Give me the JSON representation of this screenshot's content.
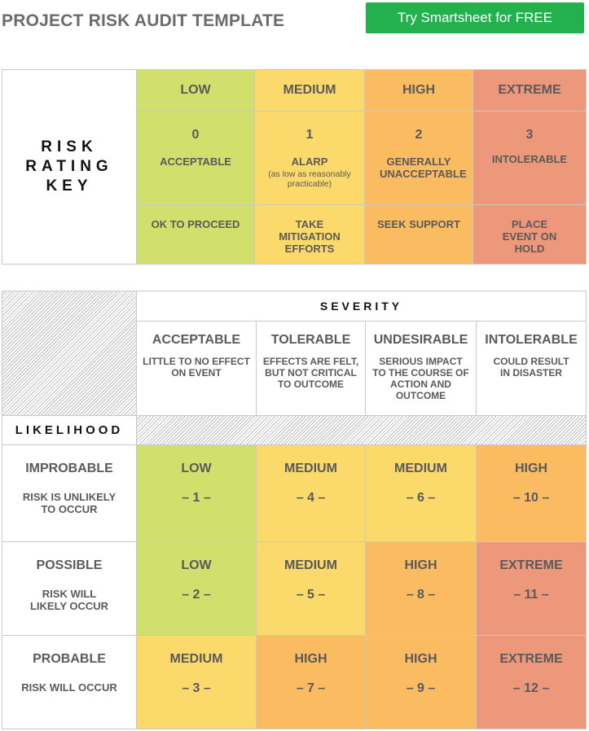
{
  "header": {
    "title": "PROJECT RISK AUDIT TEMPLATE",
    "cta_label": "Try Smartsheet for FREE"
  },
  "rating_key": {
    "label_lines": [
      "RISK",
      "RATING",
      "KEY"
    ],
    "levels": [
      {
        "name": "LOW",
        "score": "0",
        "meaning": "ACCEPTABLE",
        "meaning_sub": "",
        "action": "OK TO PROCEED",
        "color": "#d1e06d"
      },
      {
        "name": "MEDIUM",
        "score": "1",
        "meaning": "ALARP",
        "meaning_sub": "(as low as reasonably practicable)",
        "action": "TAKE MITIGATION EFFORTS",
        "color": "#fbd96a"
      },
      {
        "name": "HIGH",
        "score": "2",
        "meaning": "GENERALLY UNACCEPTABLE",
        "meaning_sub": "",
        "action": "SEEK SUPPORT",
        "color": "#fbbb61"
      },
      {
        "name": "EXTREME",
        "score": "3",
        "meaning": "INTOLERABLE",
        "meaning_sub": "",
        "action": "PLACE EVENT ON HOLD",
        "color": "#ed977b"
      }
    ]
  },
  "matrix": {
    "severity_label": "SEVERITY",
    "likelihood_label": "LIKELIHOOD",
    "severity": [
      {
        "name": "ACCEPTABLE",
        "desc": "LITTLE TO NO EFFECT ON EVENT"
      },
      {
        "name": "TOLERABLE",
        "desc": "EFFECTS ARE FELT, BUT NOT CRITICAL TO OUTCOME"
      },
      {
        "name": "UNDESIRABLE",
        "desc": "SERIOUS IMPACT TO THE COURSE OF ACTION AND OUTCOME"
      },
      {
        "name": "INTOLERABLE",
        "desc": "COULD RESULT IN DISASTER"
      }
    ],
    "rows": [
      {
        "name": "IMPROBABLE",
        "desc": "RISK IS UNLIKELY TO OCCUR",
        "cells": [
          {
            "level": "LOW",
            "num": "– 1 –",
            "color": "#d1e06d"
          },
          {
            "level": "MEDIUM",
            "num": "– 4 –",
            "color": "#fbd96a"
          },
          {
            "level": "MEDIUM",
            "num": "– 6 –",
            "color": "#fbd96a"
          },
          {
            "level": "HIGH",
            "num": "– 10 –",
            "color": "#fbbb61"
          }
        ]
      },
      {
        "name": "POSSIBLE",
        "desc": "RISK WILL LIKELY OCCUR",
        "cells": [
          {
            "level": "LOW",
            "num": "– 2 –",
            "color": "#d1e06d"
          },
          {
            "level": "MEDIUM",
            "num": "– 5 –",
            "color": "#fbd96a"
          },
          {
            "level": "HIGH",
            "num": "– 8 –",
            "color": "#fbbb61"
          },
          {
            "level": "EXTREME",
            "num": "– 11 –",
            "color": "#ed977b"
          }
        ]
      },
      {
        "name": "PROBABLE",
        "desc": "RISK WILL OCCUR",
        "cells": [
          {
            "level": "MEDIUM",
            "num": "– 3 –",
            "color": "#fbd96a"
          },
          {
            "level": "HIGH",
            "num": "– 7 –",
            "color": "#fbbb61"
          },
          {
            "level": "HIGH",
            "num": "– 9 –",
            "color": "#fbbb61"
          },
          {
            "level": "EXTREME",
            "num": "– 12 –",
            "color": "#ed977b"
          }
        ]
      }
    ]
  }
}
